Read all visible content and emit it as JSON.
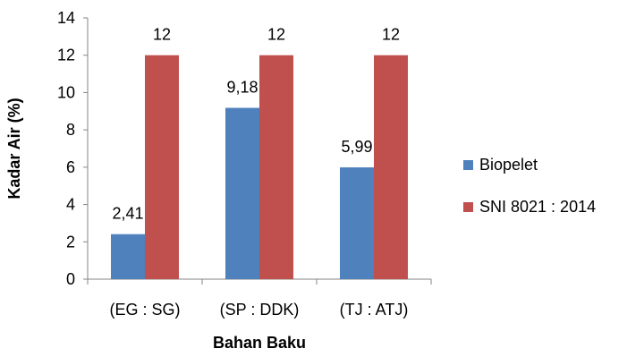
{
  "chart_data": {
    "type": "bar",
    "title": "",
    "xlabel": "Bahan Baku",
    "ylabel": "Kadar Air (%)",
    "categories": [
      "(EG : SG)",
      "(SP : DDK)",
      "(TJ : ATJ)"
    ],
    "ylim": [
      0,
      14
    ],
    "yticks": [
      "0",
      "2",
      "4",
      "6",
      "8",
      "10",
      "12",
      "14"
    ],
    "grid": false,
    "legend_position": "right",
    "series": [
      {
        "name": "Biopelet",
        "color": "#4f81bd",
        "values": [
          2.41,
          9.18,
          5.99
        ],
        "labels": [
          "2,41",
          "9,18",
          "5,99"
        ]
      },
      {
        "name": "SNI 8021 : 2014",
        "color": "#c0504d",
        "values": [
          12,
          12,
          12
        ],
        "labels": [
          "12",
          "12",
          "12"
        ]
      }
    ]
  }
}
